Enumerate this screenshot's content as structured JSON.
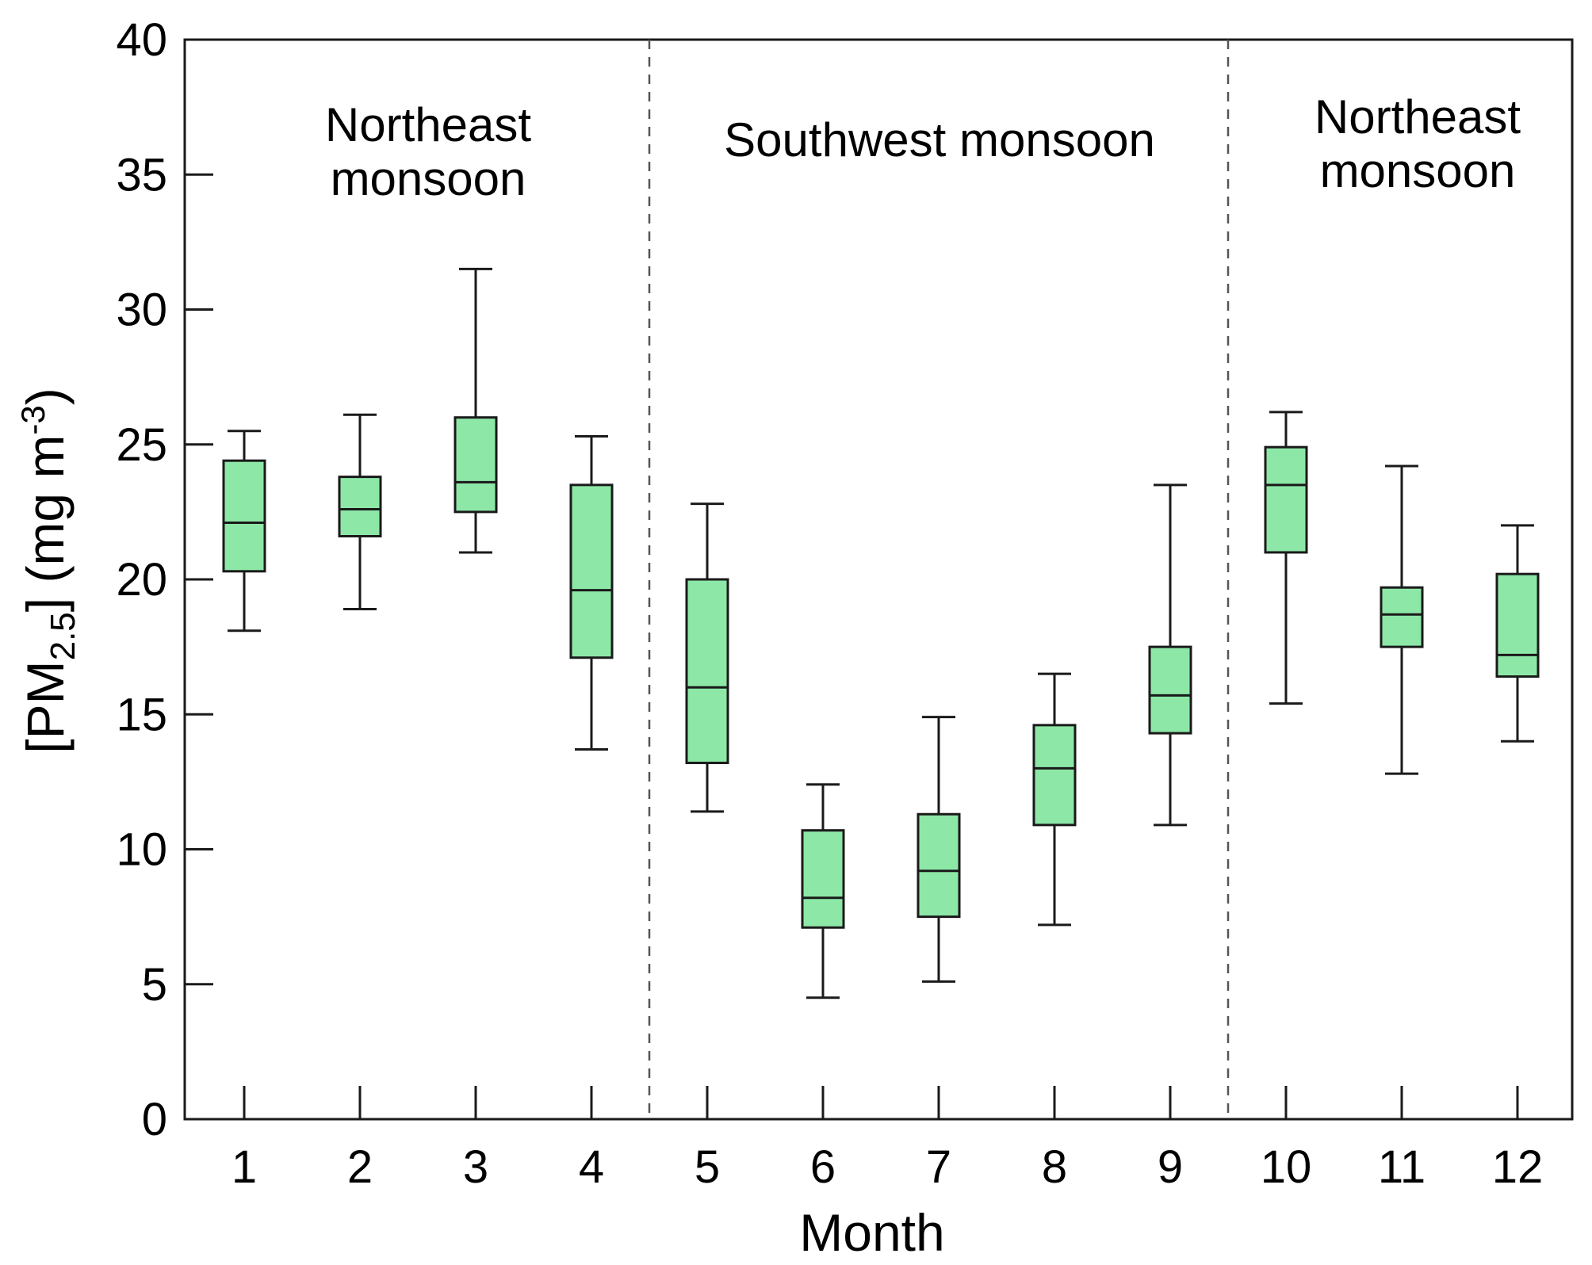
{
  "chart_data": {
    "type": "box",
    "xlabel": "Month",
    "ylabel": {
      "prefix": "[PM",
      "sub": "2.5",
      "mid": "] (mg m",
      "sup": "-3",
      "suffix": ")"
    },
    "ylim": [
      0,
      40
    ],
    "yticks": [
      "0",
      "5",
      "10",
      "15",
      "20",
      "25",
      "30",
      "35",
      "40"
    ],
    "categories": [
      "1",
      "2",
      "3",
      "4",
      "5",
      "6",
      "7",
      "8",
      "9",
      "10",
      "11",
      "12"
    ],
    "boxes": [
      {
        "month": "1",
        "whisker_low": 18.1,
        "q1": 20.3,
        "median": 22.1,
        "q3": 24.4,
        "whisker_high": 25.5
      },
      {
        "month": "2",
        "whisker_low": 18.9,
        "q1": 21.6,
        "median": 22.6,
        "q3": 23.8,
        "whisker_high": 26.1
      },
      {
        "month": "3",
        "whisker_low": 21.0,
        "q1": 22.5,
        "median": 23.6,
        "q3": 26.0,
        "whisker_high": 31.5
      },
      {
        "month": "4",
        "whisker_low": 13.7,
        "q1": 17.1,
        "median": 19.6,
        "q3": 23.5,
        "whisker_high": 25.3
      },
      {
        "month": "5",
        "whisker_low": 11.4,
        "q1": 13.2,
        "median": 16.0,
        "q3": 20.0,
        "whisker_high": 22.8
      },
      {
        "month": "6",
        "whisker_low": 4.5,
        "q1": 7.1,
        "median": 8.2,
        "q3": 10.7,
        "whisker_high": 12.4
      },
      {
        "month": "7",
        "whisker_low": 5.1,
        "q1": 7.5,
        "median": 9.2,
        "q3": 11.3,
        "whisker_high": 14.9
      },
      {
        "month": "8",
        "whisker_low": 7.2,
        "q1": 10.9,
        "median": 13.0,
        "q3": 14.6,
        "whisker_high": 16.5
      },
      {
        "month": "9",
        "whisker_low": 10.9,
        "q1": 14.3,
        "median": 15.7,
        "q3": 17.5,
        "whisker_high": 23.5
      },
      {
        "month": "10",
        "whisker_low": 15.4,
        "q1": 21.0,
        "median": 23.5,
        "q3": 24.9,
        "whisker_high": 26.2
      },
      {
        "month": "11",
        "whisker_low": 12.8,
        "q1": 17.5,
        "median": 18.7,
        "q3": 19.7,
        "whisker_high": 24.2
      },
      {
        "month": "12",
        "whisker_low": 14.0,
        "q1": 16.4,
        "median": 17.2,
        "q3": 20.2,
        "whisker_high": 22.0
      }
    ],
    "season_dividers_after_month": [
      4,
      9
    ],
    "annotations": [
      {
        "name": "northeast-monsoon-early",
        "lines": [
          "Northeast",
          "monsoon"
        ]
      },
      {
        "name": "southwest-monsoon",
        "lines": [
          "Southwest monsoon"
        ]
      },
      {
        "name": "northeast-monsoon-late",
        "lines": [
          "Northeast",
          "monsoon"
        ]
      }
    ],
    "colors": {
      "box_fill": "#8de8a8",
      "stroke": "#1a1a1a",
      "divider": "#555555"
    }
  }
}
